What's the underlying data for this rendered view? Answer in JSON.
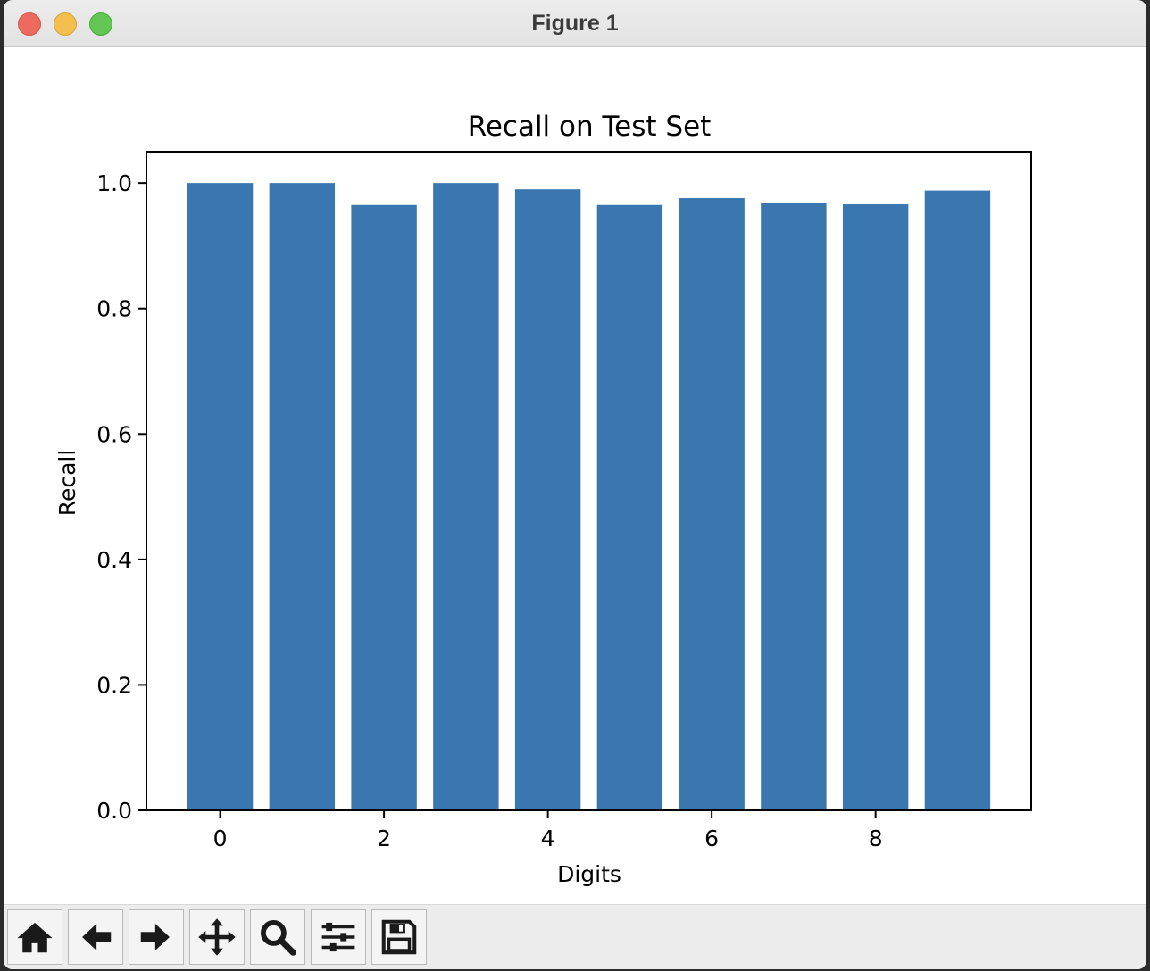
{
  "window": {
    "title": "Figure 1"
  },
  "toolbar": {
    "buttons": [
      {
        "name": "home-icon"
      },
      {
        "name": "back-arrow-icon"
      },
      {
        "name": "forward-arrow-icon"
      },
      {
        "name": "pan-icon"
      },
      {
        "name": "zoom-icon"
      },
      {
        "name": "configure-subplots-icon"
      },
      {
        "name": "save-icon"
      }
    ]
  },
  "chart_data": {
    "type": "bar",
    "title": "Recall on Test Set",
    "xlabel": "Digits",
    "ylabel": "Recall",
    "categories": [
      0,
      1,
      2,
      3,
      4,
      5,
      6,
      7,
      8,
      9
    ],
    "values": [
      1.0,
      1.0,
      0.965,
      1.0,
      0.99,
      0.965,
      0.976,
      0.968,
      0.966,
      0.988
    ],
    "xticks": [
      "0",
      "2",
      "4",
      "6",
      "8"
    ],
    "yticks": [
      "0.0",
      "0.2",
      "0.4",
      "0.6",
      "0.8",
      "1.0"
    ],
    "xlim": [
      -0.9,
      9.9
    ],
    "ylim": [
      0,
      1.05
    ],
    "grid": false,
    "bar_color": "#3a76af"
  }
}
